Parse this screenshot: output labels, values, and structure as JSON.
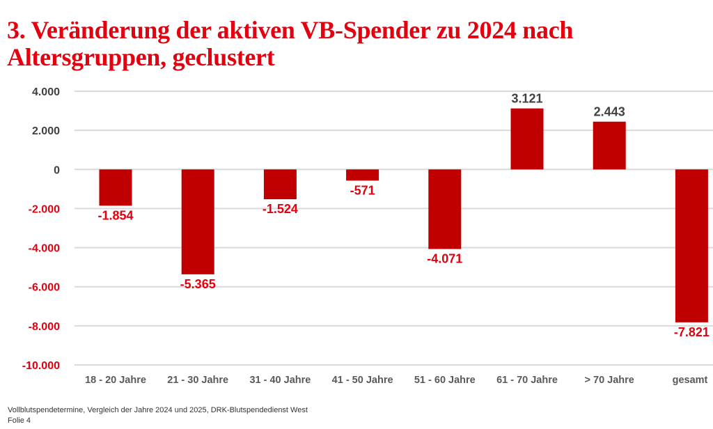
{
  "title_line1": "3. Veränderung der aktiven VB-Spender zu 2024 nach",
  "title_line2": "Altersgruppen, geclustert",
  "footer": {
    "source": "Vollblutspendetermine, Vergleich der Jahre 2024 und 2025, DRK-Blutspendedienst West",
    "slide": "Folie 4"
  },
  "colors": {
    "bar": "#c00000",
    "negative_text": "#e3000f",
    "positive_text": "#404040",
    "grid": "#d9d9d9"
  },
  "chart_data": {
    "type": "bar",
    "title": "3. Veränderung der aktiven VB-Spender zu 2024 nach Altersgruppen, geclustert",
    "xlabel": "",
    "ylabel": "",
    "categories": [
      "18 - 20 Jahre",
      "21 - 30 Jahre",
      "31 - 40 Jahre",
      "41 - 50 Jahre",
      "51 - 60 Jahre",
      "61 - 70 Jahre",
      "> 70 Jahre",
      "gesamt"
    ],
    "values": [
      -1854,
      -5365,
      -1524,
      -571,
      -4071,
      3121,
      2443,
      -7821
    ],
    "value_labels": [
      "-1.854",
      "-5.365",
      "-1.524",
      "-571",
      "-4.071",
      "3.121",
      "2.443",
      "-7.821"
    ],
    "ylim": [
      -10000,
      4000
    ],
    "yticks": [
      4000,
      2000,
      0,
      -2000,
      -4000,
      -6000,
      -8000,
      -10000
    ],
    "ytick_labels": [
      "4.000",
      "2.000",
      "0",
      "-2.000",
      "-4.000",
      "-6.000",
      "-8.000",
      "-10.000"
    ],
    "grid": true,
    "legend": "none"
  }
}
